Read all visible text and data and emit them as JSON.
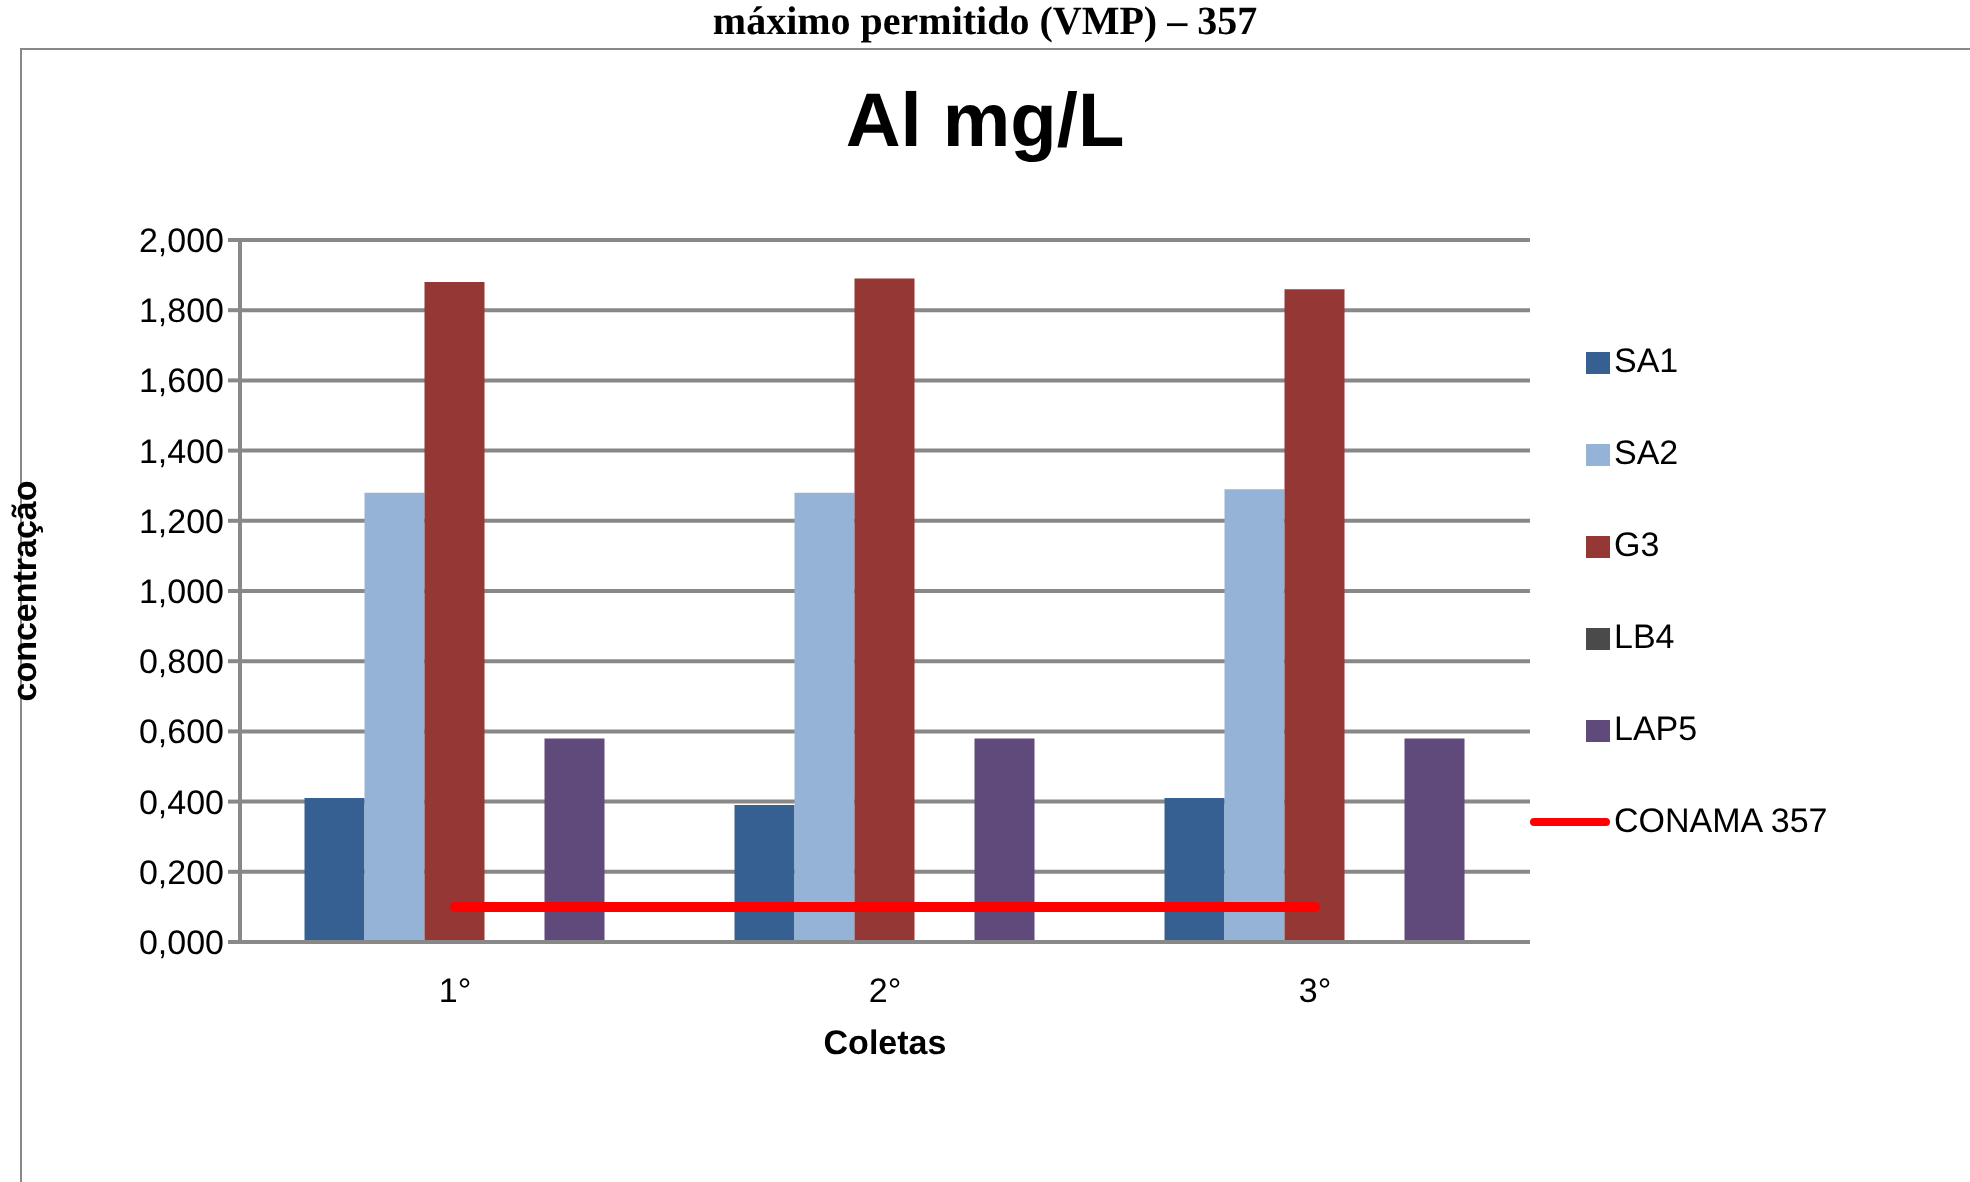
{
  "chart_data": {
    "type": "bar",
    "title": "Al mg/L",
    "xlabel": "Coletas",
    "ylabel": "concentração",
    "annotations": [
      "máximo permitido (VMP) – 357"
    ],
    "categories": [
      "1°",
      "2°",
      "3°"
    ],
    "ylim": [
      0,
      2
    ],
    "yticks": [
      {
        "value": 0,
        "label": "0,000"
      },
      {
        "value": 0.2,
        "label": "0,200"
      },
      {
        "value": 0.4,
        "label": "0,400"
      },
      {
        "value": 0.6,
        "label": "0,600"
      },
      {
        "value": 0.8,
        "label": "0,800"
      },
      {
        "value": 1,
        "label": "1,000"
      },
      {
        "value": 1.2,
        "label": "1,200"
      },
      {
        "value": 1.4,
        "label": "1,400"
      },
      {
        "value": 1.6,
        "label": "1,600"
      },
      {
        "value": 1.8,
        "label": "1,800"
      },
      {
        "value": 2,
        "label": "2,000"
      }
    ],
    "grid": "y",
    "legend": "right",
    "marker": "none",
    "series": [
      {
        "name": "SA1",
        "color": "#366092",
        "values": [
          0.41,
          0.39,
          0.41
        ]
      },
      {
        "name": "SA2",
        "color": "#95b3d7",
        "values": [
          1.28,
          1.28,
          1.29
        ]
      },
      {
        "name": "G3",
        "color": "#953735",
        "values": [
          1.88,
          1.89,
          1.86
        ]
      },
      {
        "name": "LB4",
        "color": "#4a4a4a",
        "values": [
          0,
          0,
          0
        ]
      },
      {
        "name": "LAP5",
        "color": "#604a7b",
        "values": [
          0.58,
          0.58,
          0.58
        ]
      },
      {
        "name": "CONAMA 357",
        "type": "line",
        "color": "#ff0000",
        "values": [
          0.1,
          0.1,
          0.1
        ]
      }
    ]
  }
}
